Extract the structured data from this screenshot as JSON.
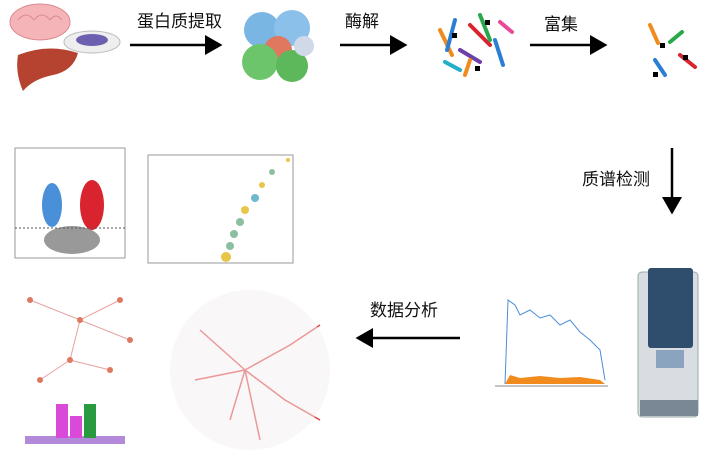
{
  "steps": [
    {
      "label": "蛋白质提取"
    },
    {
      "label": "酶解"
    },
    {
      "label": "富集"
    },
    {
      "label": "质谱检测"
    },
    {
      "label": "数据分析"
    }
  ]
}
